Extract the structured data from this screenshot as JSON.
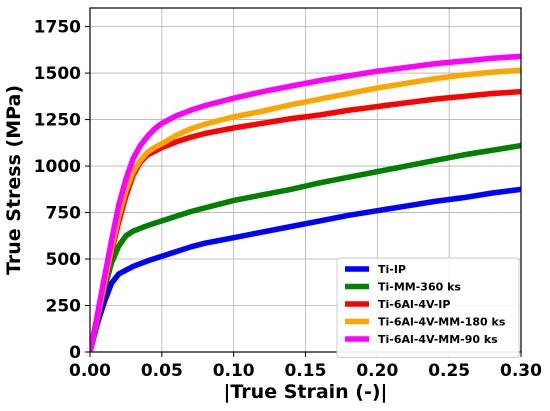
{
  "chart_data": {
    "type": "line",
    "xlabel": "|True Strain (-)|",
    "ylabel": "True Stress (MPa)",
    "xlim": [
      0.0,
      0.3
    ],
    "ylim": [
      0,
      1850
    ],
    "x_ticks": [
      0.0,
      0.05,
      0.1,
      0.15,
      0.2,
      0.25,
      0.3
    ],
    "x_tick_labels": [
      "0.00",
      "0.05",
      "0.10",
      "0.15",
      "0.20",
      "0.25",
      "0.30"
    ],
    "y_ticks": [
      0,
      250,
      500,
      750,
      1000,
      1250,
      1500,
      1750
    ],
    "y_tick_labels": [
      "0",
      "250",
      "500",
      "750",
      "1000",
      "1250",
      "1500",
      "1750"
    ],
    "grid": true,
    "legend_position": "bottom-right",
    "series": [
      {
        "name": "Ti-IP",
        "color": "#0000ff",
        "x": [
          0.0,
          0.005,
          0.01,
          0.015,
          0.02,
          0.025,
          0.03,
          0.04,
          0.05,
          0.06,
          0.07,
          0.08,
          0.09,
          0.1,
          0.12,
          0.14,
          0.16,
          0.18,
          0.2,
          0.22,
          0.24,
          0.26,
          0.28,
          0.3
        ],
        "y": [
          0,
          150,
          270,
          370,
          420,
          440,
          460,
          490,
          515,
          540,
          565,
          585,
          600,
          615,
          645,
          675,
          705,
          735,
          760,
          785,
          810,
          830,
          855,
          875
        ]
      },
      {
        "name": "Ti-MM-360 ks",
        "color": "#008000",
        "x": [
          0.0,
          0.005,
          0.01,
          0.015,
          0.02,
          0.025,
          0.03,
          0.04,
          0.05,
          0.06,
          0.07,
          0.08,
          0.09,
          0.1,
          0.12,
          0.14,
          0.16,
          0.18,
          0.2,
          0.22,
          0.24,
          0.26,
          0.28,
          0.3
        ],
        "y": [
          0,
          170,
          340,
          480,
          570,
          625,
          650,
          680,
          705,
          730,
          755,
          775,
          795,
          815,
          845,
          875,
          910,
          940,
          970,
          1000,
          1030,
          1060,
          1085,
          1110
        ]
      },
      {
        "name": "Ti-6Al-4V-IP",
        "color": "#ff0000",
        "x": [
          0.0,
          0.005,
          0.01,
          0.015,
          0.02,
          0.025,
          0.03,
          0.035,
          0.04,
          0.045,
          0.05,
          0.06,
          0.07,
          0.08,
          0.09,
          0.1,
          0.12,
          0.14,
          0.16,
          0.18,
          0.2,
          0.22,
          0.24,
          0.26,
          0.28,
          0.3
        ],
        "y": [
          0,
          180,
          360,
          540,
          700,
          840,
          950,
          1020,
          1060,
          1080,
          1100,
          1130,
          1155,
          1175,
          1190,
          1205,
          1230,
          1255,
          1275,
          1300,
          1320,
          1340,
          1360,
          1375,
          1390,
          1400
        ]
      },
      {
        "name": "Ti-6Al-4V-MM-180 ks",
        "color": "#ffa500",
        "x": [
          0.0,
          0.005,
          0.01,
          0.015,
          0.02,
          0.025,
          0.03,
          0.035,
          0.04,
          0.045,
          0.05,
          0.06,
          0.07,
          0.08,
          0.09,
          0.1,
          0.12,
          0.14,
          0.16,
          0.18,
          0.2,
          0.22,
          0.24,
          0.26,
          0.28,
          0.3
        ],
        "y": [
          0,
          185,
          370,
          560,
          730,
          870,
          970,
          1030,
          1075,
          1100,
          1120,
          1165,
          1200,
          1225,
          1245,
          1265,
          1295,
          1330,
          1360,
          1390,
          1420,
          1445,
          1470,
          1490,
          1505,
          1515
        ]
      },
      {
        "name": "Ti-6Al-4V-MM-90 ks",
        "color": "#ff00ff",
        "x": [
          0.0,
          0.005,
          0.01,
          0.015,
          0.02,
          0.025,
          0.03,
          0.035,
          0.04,
          0.045,
          0.05,
          0.06,
          0.07,
          0.08,
          0.09,
          0.1,
          0.12,
          0.14,
          0.16,
          0.18,
          0.2,
          0.22,
          0.24,
          0.26,
          0.28,
          0.3
        ],
        "y": [
          0,
          195,
          400,
          600,
          790,
          930,
          1040,
          1110,
          1160,
          1200,
          1230,
          1270,
          1300,
          1325,
          1345,
          1365,
          1400,
          1430,
          1460,
          1485,
          1510,
          1530,
          1550,
          1565,
          1580,
          1590
        ]
      }
    ]
  }
}
